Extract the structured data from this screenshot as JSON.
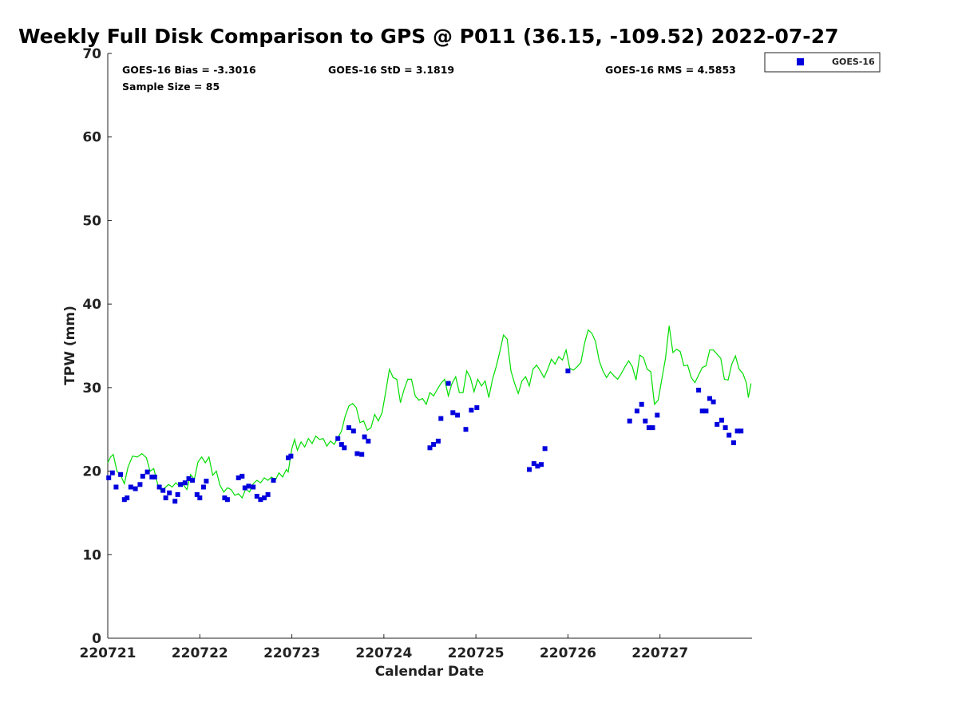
{
  "chart_data": {
    "type": "scatter",
    "title": "Weekly Full Disk Comparison to GPS @ P011 (36.15, -109.52) 2022-07-27",
    "xlabel": "Calendar Date",
    "ylabel": "TPW (mm)",
    "xlim": [
      220721,
      220728
    ],
    "ylim": [
      0,
      70
    ],
    "x_ticks": [
      "220721",
      "220722",
      "220723",
      "220724",
      "220725",
      "220726",
      "220727"
    ],
    "y_ticks": [
      "0",
      "10",
      "20",
      "30",
      "40",
      "50",
      "60",
      "70"
    ],
    "grid": false,
    "legend": {
      "placement": "outside-top-right",
      "entries": [
        "GOES-16"
      ]
    },
    "stats": {
      "bias": "GOES-16 Bias = -3.3016",
      "std": "GOES-16 StD = 3.1819",
      "rms": "GOES-16 RMS = 4.5853",
      "sample": "Sample Size = 85"
    },
    "series": [
      {
        "name": "GOES-16",
        "kind": "scatter",
        "color": "#0000dd",
        "points": [
          [
            220721.01,
            19.2
          ],
          [
            220721.05,
            19.8
          ],
          [
            220721.09,
            18.1
          ],
          [
            220721.14,
            19.6
          ],
          [
            220721.18,
            16.6
          ],
          [
            220721.21,
            16.8
          ],
          [
            220721.25,
            18.1
          ],
          [
            220721.3,
            17.9
          ],
          [
            220721.35,
            18.4
          ],
          [
            220721.38,
            19.4
          ],
          [
            220721.43,
            19.9
          ],
          [
            220721.48,
            19.3
          ],
          [
            220721.51,
            19.3
          ],
          [
            220721.56,
            18.1
          ],
          [
            220721.6,
            17.7
          ],
          [
            220721.63,
            16.8
          ],
          [
            220721.67,
            17.4
          ],
          [
            220721.73,
            16.4
          ],
          [
            220721.76,
            17.2
          ],
          [
            220721.79,
            18.4
          ],
          [
            220721.84,
            18.6
          ],
          [
            220721.88,
            19.1
          ],
          [
            220721.92,
            18.9
          ],
          [
            220721.97,
            17.2
          ],
          [
            220722.0,
            16.8
          ],
          [
            220722.04,
            18.1
          ],
          [
            220722.07,
            18.8
          ],
          [
            220722.27,
            16.8
          ],
          [
            220722.3,
            16.6
          ],
          [
            220722.42,
            19.2
          ],
          [
            220722.46,
            19.4
          ],
          [
            220722.49,
            18.0
          ],
          [
            220722.53,
            18.2
          ],
          [
            220722.58,
            18.1
          ],
          [
            220722.62,
            17.0
          ],
          [
            220722.66,
            16.6
          ],
          [
            220722.7,
            16.8
          ],
          [
            220722.74,
            17.2
          ],
          [
            220722.8,
            18.9
          ],
          [
            220722.96,
            21.6
          ],
          [
            220722.99,
            21.8
          ],
          [
            220723.5,
            23.9
          ],
          [
            220723.54,
            23.2
          ],
          [
            220723.57,
            22.8
          ],
          [
            220723.62,
            25.2
          ],
          [
            220723.67,
            24.8
          ],
          [
            220723.71,
            22.1
          ],
          [
            220723.76,
            22.0
          ],
          [
            220723.79,
            24.1
          ],
          [
            220723.83,
            23.6
          ],
          [
            220724.5,
            22.8
          ],
          [
            220724.54,
            23.2
          ],
          [
            220724.59,
            23.6
          ],
          [
            220724.62,
            26.3
          ],
          [
            220724.7,
            30.5
          ],
          [
            220724.75,
            27.0
          ],
          [
            220724.8,
            26.7
          ],
          [
            220724.89,
            25.0
          ],
          [
            220724.95,
            27.3
          ],
          [
            220725.01,
            27.6
          ],
          [
            220725.58,
            20.2
          ],
          [
            220725.63,
            20.9
          ],
          [
            220725.67,
            20.6
          ],
          [
            220725.71,
            20.8
          ],
          [
            220725.75,
            22.7
          ],
          [
            220726.0,
            32.0
          ],
          [
            220726.67,
            26.0
          ],
          [
            220726.75,
            27.2
          ],
          [
            220726.8,
            28.0
          ],
          [
            220726.84,
            26.0
          ],
          [
            220726.88,
            25.2
          ],
          [
            220726.92,
            25.2
          ],
          [
            220726.97,
            26.7
          ],
          [
            220727.42,
            29.7
          ],
          [
            220727.46,
            27.2
          ],
          [
            220727.5,
            27.2
          ],
          [
            220727.54,
            28.7
          ],
          [
            220727.58,
            28.3
          ],
          [
            220727.62,
            25.6
          ],
          [
            220727.67,
            26.1
          ],
          [
            220727.71,
            25.2
          ],
          [
            220727.75,
            24.3
          ],
          [
            220727.8,
            23.4
          ],
          [
            220727.84,
            24.8
          ],
          [
            220727.88,
            24.8
          ]
        ]
      },
      {
        "name": "",
        "kind": "line",
        "color": "#00dd00",
        "points": [
          [
            220721.0,
            21.0
          ],
          [
            220721.03,
            21.7
          ],
          [
            220721.06,
            22.0
          ],
          [
            220721.1,
            20.0
          ],
          [
            220721.14,
            19.5
          ],
          [
            220721.18,
            18.5
          ],
          [
            220721.22,
            20.5
          ],
          [
            220721.27,
            21.8
          ],
          [
            220721.32,
            21.7
          ],
          [
            220721.37,
            22.1
          ],
          [
            220721.42,
            21.6
          ],
          [
            220721.46,
            20.0
          ],
          [
            220721.5,
            20.3
          ],
          [
            220721.54,
            18.5
          ],
          [
            220721.58,
            17.6
          ],
          [
            220721.62,
            18.0
          ],
          [
            220721.66,
            18.4
          ],
          [
            220721.7,
            18.1
          ],
          [
            220721.74,
            18.6
          ],
          [
            220721.78,
            18.2
          ],
          [
            220721.82,
            18.4
          ],
          [
            220721.86,
            17.8
          ],
          [
            220721.9,
            19.6
          ],
          [
            220721.94,
            19.0
          ],
          [
            220721.98,
            21.1
          ],
          [
            220722.02,
            21.7
          ],
          [
            220722.06,
            21.0
          ],
          [
            220722.1,
            21.7
          ],
          [
            220722.14,
            19.5
          ],
          [
            220722.18,
            20.0
          ],
          [
            220722.22,
            18.3
          ],
          [
            220722.26,
            17.5
          ],
          [
            220722.3,
            18.0
          ],
          [
            220722.34,
            17.8
          ],
          [
            220722.38,
            17.1
          ],
          [
            220722.42,
            17.3
          ],
          [
            220722.46,
            16.8
          ],
          [
            220722.5,
            17.9
          ],
          [
            220722.54,
            17.5
          ],
          [
            220722.58,
            18.5
          ],
          [
            220722.62,
            18.9
          ],
          [
            220722.66,
            18.6
          ],
          [
            220722.7,
            19.2
          ],
          [
            220722.74,
            18.9
          ],
          [
            220722.78,
            19.3
          ],
          [
            220722.82,
            18.9
          ],
          [
            220722.86,
            19.8
          ],
          [
            220722.9,
            19.3
          ],
          [
            220722.94,
            20.2
          ],
          [
            220722.96,
            19.9
          ],
          [
            220723.0,
            22.7
          ],
          [
            220723.03,
            23.8
          ],
          [
            220723.06,
            22.5
          ],
          [
            220723.1,
            23.5
          ],
          [
            220723.14,
            22.9
          ],
          [
            220723.18,
            23.9
          ],
          [
            220723.22,
            23.3
          ],
          [
            220723.26,
            24.2
          ],
          [
            220723.3,
            23.8
          ],
          [
            220723.34,
            23.9
          ],
          [
            220723.38,
            23.0
          ],
          [
            220723.42,
            23.6
          ],
          [
            220723.46,
            23.2
          ],
          [
            220723.5,
            24.0
          ],
          [
            220723.54,
            24.8
          ],
          [
            220723.58,
            26.6
          ],
          [
            220723.62,
            27.8
          ],
          [
            220723.66,
            28.1
          ],
          [
            220723.7,
            27.6
          ],
          [
            220723.74,
            25.8
          ],
          [
            220723.78,
            26.0
          ],
          [
            220723.82,
            24.9
          ],
          [
            220723.86,
            25.2
          ],
          [
            220723.9,
            26.8
          ],
          [
            220723.94,
            26.0
          ],
          [
            220723.98,
            27.0
          ],
          [
            220724.02,
            29.5
          ],
          [
            220724.06,
            32.2
          ],
          [
            220724.1,
            31.2
          ],
          [
            220724.14,
            31.0
          ],
          [
            220724.18,
            28.2
          ],
          [
            220724.22,
            29.8
          ],
          [
            220724.26,
            31.0
          ],
          [
            220724.3,
            31.0
          ],
          [
            220724.34,
            29.0
          ],
          [
            220724.38,
            28.5
          ],
          [
            220724.42,
            28.7
          ],
          [
            220724.46,
            28.0
          ],
          [
            220724.5,
            29.4
          ],
          [
            220724.54,
            29.0
          ],
          [
            220724.58,
            29.8
          ],
          [
            220724.62,
            30.5
          ],
          [
            220724.66,
            31.0
          ],
          [
            220724.7,
            29.0
          ],
          [
            220724.74,
            30.5
          ],
          [
            220724.78,
            31.3
          ],
          [
            220724.82,
            29.4
          ],
          [
            220724.86,
            29.4
          ],
          [
            220724.9,
            32.0
          ],
          [
            220724.94,
            31.2
          ],
          [
            220724.98,
            29.5
          ],
          [
            220725.02,
            31.0
          ],
          [
            220725.06,
            30.2
          ],
          [
            220725.1,
            30.8
          ],
          [
            220725.14,
            28.8
          ],
          [
            220725.18,
            31.0
          ],
          [
            220725.22,
            32.5
          ],
          [
            220725.26,
            34.3
          ],
          [
            220725.3,
            36.3
          ],
          [
            220725.34,
            35.8
          ],
          [
            220725.38,
            32.0
          ],
          [
            220725.42,
            30.5
          ],
          [
            220725.46,
            29.3
          ],
          [
            220725.5,
            30.8
          ],
          [
            220725.54,
            31.3
          ],
          [
            220725.58,
            30.2
          ],
          [
            220725.62,
            32.2
          ],
          [
            220725.66,
            32.7
          ],
          [
            220725.7,
            32.0
          ],
          [
            220725.74,
            31.2
          ],
          [
            220725.78,
            32.2
          ],
          [
            220725.82,
            33.4
          ],
          [
            220725.86,
            32.8
          ],
          [
            220725.9,
            33.7
          ],
          [
            220725.94,
            33.3
          ],
          [
            220725.98,
            34.5
          ],
          [
            220726.02,
            32.3
          ],
          [
            220726.06,
            32.1
          ],
          [
            220726.1,
            32.5
          ],
          [
            220726.14,
            33.0
          ],
          [
            220726.18,
            35.3
          ],
          [
            220726.22,
            36.9
          ],
          [
            220726.26,
            36.5
          ],
          [
            220726.3,
            35.5
          ],
          [
            220726.34,
            33.2
          ],
          [
            220726.38,
            32.0
          ],
          [
            220726.42,
            31.2
          ],
          [
            220726.46,
            31.9
          ],
          [
            220726.5,
            31.4
          ],
          [
            220726.54,
            31.0
          ],
          [
            220726.58,
            31.7
          ],
          [
            220726.62,
            32.5
          ],
          [
            220726.66,
            33.2
          ],
          [
            220726.7,
            32.5
          ],
          [
            220726.74,
            30.9
          ],
          [
            220726.78,
            33.9
          ],
          [
            220726.82,
            33.6
          ],
          [
            220726.86,
            32.2
          ],
          [
            220726.9,
            31.9
          ],
          [
            220726.94,
            28.0
          ],
          [
            220726.98,
            28.5
          ],
          [
            220727.02,
            31.0
          ],
          [
            220727.06,
            33.5
          ],
          [
            220727.1,
            37.4
          ],
          [
            220727.14,
            34.2
          ],
          [
            220727.18,
            34.6
          ],
          [
            220727.22,
            34.3
          ],
          [
            220727.26,
            32.6
          ],
          [
            220727.3,
            32.7
          ],
          [
            220727.34,
            31.2
          ],
          [
            220727.38,
            30.6
          ],
          [
            220727.42,
            31.5
          ],
          [
            220727.46,
            32.4
          ],
          [
            220727.5,
            32.6
          ],
          [
            220727.54,
            34.5
          ],
          [
            220727.58,
            34.5
          ],
          [
            220727.62,
            34.0
          ],
          [
            220727.66,
            33.5
          ],
          [
            220727.7,
            31.0
          ],
          [
            220727.74,
            30.9
          ],
          [
            220727.78,
            32.8
          ],
          [
            220727.82,
            33.8
          ],
          [
            220727.86,
            32.2
          ],
          [
            220727.9,
            31.7
          ],
          [
            220727.94,
            30.5
          ],
          [
            220727.96,
            28.8
          ],
          [
            220727.99,
            30.5
          ]
        ]
      }
    ]
  }
}
